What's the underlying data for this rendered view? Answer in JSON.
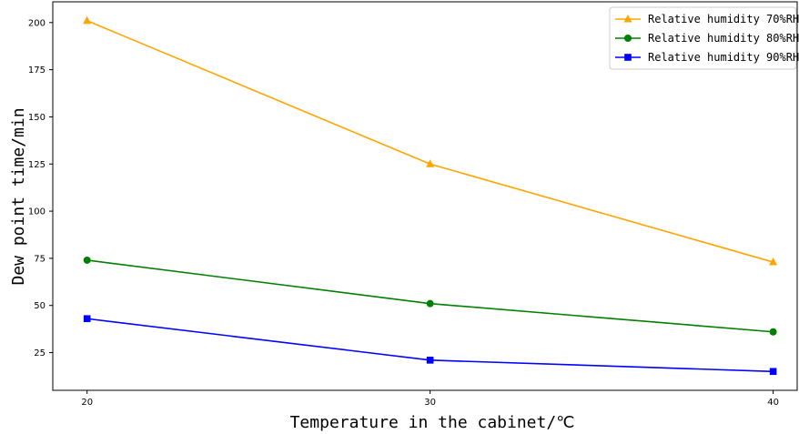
{
  "chart_data": {
    "type": "line",
    "title": "",
    "xlabel": "Temperature in the cabinet/℃",
    "ylabel": "Dew point time/min",
    "x": [
      20,
      30,
      40
    ],
    "x_tick_labels": [
      "20",
      "30",
      "40"
    ],
    "xlim": [
      19,
      40.7
    ],
    "ylim": [
      5,
      211
    ],
    "y_ticks": [
      25,
      50,
      75,
      100,
      125,
      150,
      175,
      200
    ],
    "y_tick_labels": [
      "25",
      "50",
      "75",
      "100",
      "125",
      "150",
      "175",
      "200"
    ],
    "grid": false,
    "legend_position": "top-right",
    "series": [
      {
        "name": "Relative humidity 70%RH",
        "values": [
          201,
          125,
          73
        ],
        "color": "#FFA500",
        "marker": "triangle"
      },
      {
        "name": "Relative humidity 80%RH",
        "values": [
          74,
          51,
          36
        ],
        "color": "#008000",
        "marker": "circle"
      },
      {
        "name": "Relative humidity 90%RH",
        "values": [
          43,
          21,
          15
        ],
        "color": "#0000FF",
        "marker": "square"
      }
    ]
  }
}
